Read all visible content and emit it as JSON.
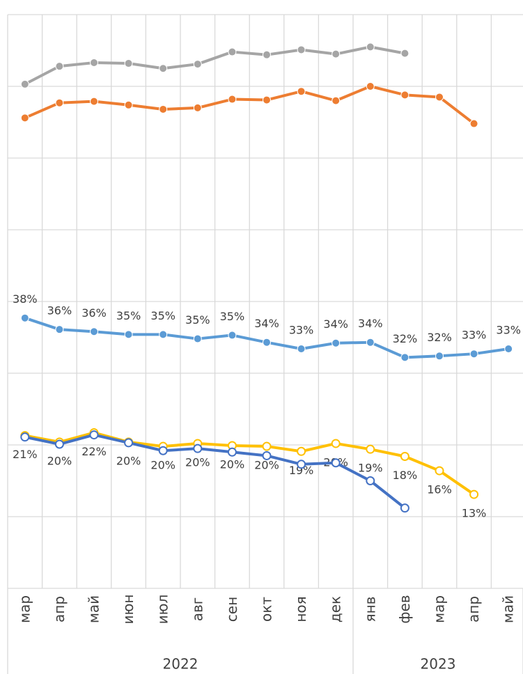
{
  "chart_data": {
    "type": "line",
    "categories": [
      "мар",
      "апр",
      "май",
      "июн",
      "июл",
      "авг",
      "сен",
      "окт",
      "ноя",
      "дек",
      "янв",
      "фев",
      "мар",
      "апр",
      "май"
    ],
    "x_groups": [
      {
        "label": "2022",
        "count": 10
      },
      {
        "label": "2023",
        "count": 5
      }
    ],
    "series": [
      {
        "color": "#a5a5a5",
        "marker": "filled",
        "values": [
          70.3,
          72.8,
          73.3,
          73.2,
          72.5,
          73.1,
          74.8,
          74.4,
          75.1,
          74.5,
          75.5,
          74.6,
          null,
          null,
          null
        ]
      },
      {
        "color": "#ed7d31",
        "marker": "filled",
        "values": [
          65.6,
          67.7,
          67.9,
          67.4,
          66.8,
          67.0,
          68.2,
          68.1,
          69.3,
          68.0,
          70.0,
          68.8,
          68.5,
          64.8,
          null
        ]
      },
      {
        "color": "#5b9bd5",
        "marker": "filled",
        "label_position": "above",
        "values": [
          37.7,
          36.1,
          35.8,
          35.4,
          35.4,
          34.8,
          35.3,
          34.3,
          33.4,
          34.2,
          34.3,
          32.2,
          32.4,
          32.7,
          33.4
        ],
        "value_labels": [
          "38%",
          "36%",
          "36%",
          "35%",
          "35%",
          "35%",
          "35%",
          "34%",
          "33%",
          "34%",
          "34%",
          "32%",
          "32%",
          "33%",
          "33%"
        ]
      },
      {
        "color": "#ffc000",
        "marker": "open",
        "label_position": "below",
        "values": [
          21.3,
          20.4,
          21.7,
          20.4,
          19.8,
          20.2,
          19.9,
          19.8,
          19.1,
          20.2,
          19.4,
          18.4,
          16.4,
          13.1,
          null
        ],
        "value_labels": [
          "21%",
          "20%",
          "22%",
          "20%",
          "20%",
          "20%",
          "20%",
          "20%",
          "19%",
          "20%",
          "19%",
          "18%",
          "16%",
          "13%",
          null
        ]
      },
      {
        "color": "#4472c4",
        "marker": "open",
        "values": [
          21.1,
          20.1,
          21.4,
          20.3,
          19.2,
          19.5,
          19.0,
          18.5,
          17.3,
          17.5,
          15.0,
          11.2,
          null,
          null,
          null
        ]
      }
    ],
    "ylim": [
      0,
      80
    ],
    "yticks": [
      0,
      10,
      20,
      30,
      40,
      50,
      60,
      70,
      80
    ],
    "grid": true
  }
}
